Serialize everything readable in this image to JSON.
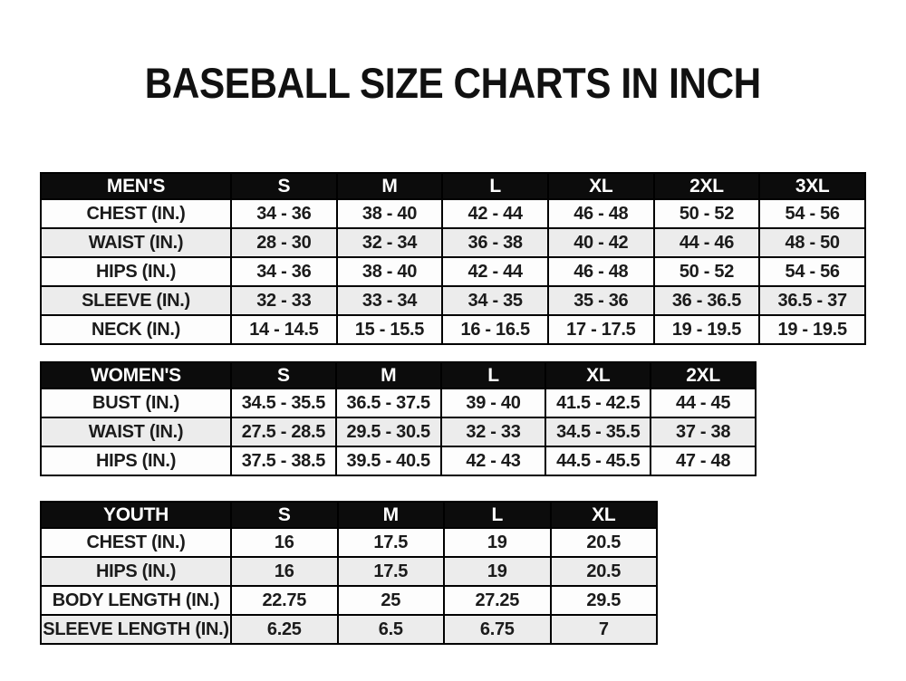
{
  "page": {
    "title": "BASEBALL SIZE CHARTS IN INCH"
  },
  "colors": {
    "page_bg": "#ffffff",
    "header_bg": "#0c0c0c",
    "header_text": "#ffffff",
    "row_bg": "#fdfdfd",
    "row_alt_bg": "#ececec",
    "border": "#000000",
    "text": "#1b1b1b"
  },
  "tables": [
    {
      "id": "mens",
      "title": "MEN'S",
      "header": [
        "MEN'S",
        "S",
        "M",
        "L",
        "XL",
        "2XL",
        "3XL"
      ],
      "rows": [
        [
          "CHEST (IN.)",
          "34 - 36",
          "38 - 40",
          "42 - 44",
          "46 - 48",
          "50 - 52",
          "54 - 56"
        ],
        [
          "WAIST (IN.)",
          "28 - 30",
          "32 - 34",
          "36 - 38",
          "40 - 42",
          "44 - 46",
          "48 - 50"
        ],
        [
          "HIPS (IN.)",
          "34 - 36",
          "38 - 40",
          "42 - 44",
          "46 - 48",
          "50 - 52",
          "54 - 56"
        ],
        [
          "SLEEVE (IN.)",
          "32 - 33",
          "33 - 34",
          "34 - 35",
          "35 - 36",
          "36 - 36.5",
          "36.5 - 37"
        ],
        [
          "NECK (IN.)",
          "14 - 14.5",
          "15 - 15.5",
          "16 - 16.5",
          "17 - 17.5",
          "19 - 19.5",
          "19 - 19.5"
        ]
      ]
    },
    {
      "id": "womens",
      "title": "WOMEN'S",
      "header": [
        "WOMEN'S",
        "S",
        "M",
        "L",
        "XL",
        "2XL"
      ],
      "rows": [
        [
          "BUST (IN.)",
          "34.5 - 35.5",
          "36.5 - 37.5",
          "39 - 40",
          "41.5 - 42.5",
          "44 - 45"
        ],
        [
          "WAIST (IN.)",
          "27.5 - 28.5",
          "29.5 - 30.5",
          "32 - 33",
          "34.5 - 35.5",
          "37 - 38"
        ],
        [
          "HIPS (IN.)",
          "37.5 - 38.5",
          "39.5 - 40.5",
          "42 - 43",
          "44.5 - 45.5",
          "47 - 48"
        ]
      ]
    },
    {
      "id": "youth",
      "title": "YOUTH",
      "header": [
        "YOUTH",
        "S",
        "M",
        "L",
        "XL"
      ],
      "rows": [
        [
          "CHEST (IN.)",
          "16",
          "17.5",
          "19",
          "20.5"
        ],
        [
          "HIPS (IN.)",
          "16",
          "17.5",
          "19",
          "20.5"
        ],
        [
          "BODY LENGTH (IN.)",
          "22.75",
          "25",
          "27.25",
          "29.5"
        ],
        [
          "SLEEVE LENGTH (IN.)",
          "6.25",
          "6.5",
          "6.75",
          "7"
        ]
      ]
    }
  ]
}
